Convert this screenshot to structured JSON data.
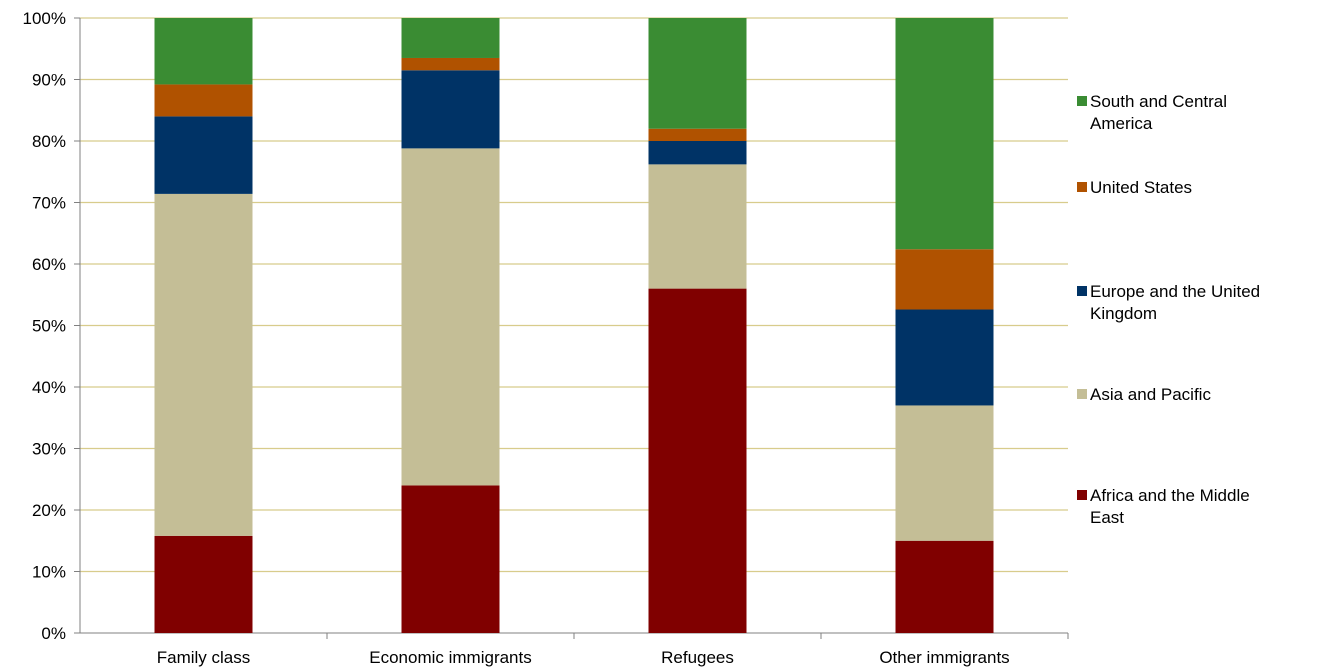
{
  "chart_data": {
    "type": "bar",
    "stacked": true,
    "normalized": true,
    "categories": [
      "Family class",
      "Economic immigrants",
      "Refugees",
      "Other immigrants"
    ],
    "series": [
      {
        "name": "Africa and the Middle East",
        "color": "#800000",
        "values": [
          15.8,
          24.0,
          56.0,
          15.0
        ]
      },
      {
        "name": "Asia and Pacific",
        "color": "#C4BE96",
        "values": [
          55.6,
          54.8,
          20.2,
          22.0
        ]
      },
      {
        "name": "Europe and the United Kingdom",
        "color": "#003366",
        "values": [
          12.6,
          12.7,
          3.8,
          15.6
        ]
      },
      {
        "name": "United States",
        "color": "#B05200",
        "values": [
          5.2,
          2.0,
          2.0,
          9.8
        ]
      },
      {
        "name": "South and Central America",
        "color": "#3A8C33",
        "values": [
          10.8,
          6.5,
          18.0,
          37.6
        ]
      }
    ],
    "ylim": [
      0,
      100
    ],
    "yticks": [
      "0%",
      "10%",
      "20%",
      "30%",
      "40%",
      "50%",
      "60%",
      "70%",
      "80%",
      "90%",
      "100%"
    ],
    "grid": true,
    "gridline_color": "#D8CC8C",
    "legend_position": "right",
    "legend_order": [
      "South and Central America",
      "United States",
      "Europe and the United Kingdom",
      "Asia and Pacific",
      "Africa and the Middle East"
    ],
    "legend_lines": {
      "South and Central America": [
        "South and Central",
        "America"
      ],
      "United States": [
        "United States"
      ],
      "Europe and the United Kingdom": [
        "Europe and the United",
        "Kingdom"
      ],
      "Asia and Pacific": [
        "Asia and Pacific"
      ],
      "Africa and the Middle East": [
        "Africa and the Middle",
        "East"
      ]
    }
  }
}
